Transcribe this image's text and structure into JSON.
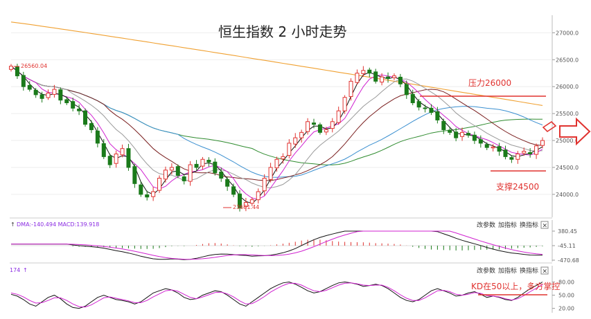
{
  "chart_data": {
    "type": "candlestick",
    "title": "恒生指数 2 小时走势",
    "main_panel": {
      "yticks": [
        "27000.0",
        "26500.0",
        "26000.0",
        "25500.0",
        "25000.0",
        "24500.0",
        "24000.0"
      ],
      "ytick_values": [
        27000,
        26500,
        26000,
        25500,
        25000,
        24500,
        24000
      ],
      "ylim": [
        23600,
        27300
      ],
      "high_label": "26560.04",
      "low_label": "23681.44",
      "resistance": {
        "label": "压力26000",
        "value": 26000
      },
      "support": {
        "label": "支撑24500",
        "value": 24500
      },
      "closes": [
        26380,
        26200,
        26000,
        25950,
        25850,
        25780,
        25880,
        25950,
        25750,
        25700,
        25600,
        25550,
        25300,
        25200,
        24950,
        24700,
        24550,
        24750,
        24850,
        24500,
        24200,
        24000,
        23950,
        24050,
        24300,
        24450,
        24500,
        24350,
        24250,
        24550,
        24500,
        24650,
        24600,
        24400,
        24300,
        24150,
        24000,
        23750,
        23850,
        23900,
        24050,
        24300,
        24500,
        24650,
        24700,
        24950,
        25050,
        25150,
        25350,
        25300,
        25150,
        25200,
        25350,
        25550,
        25800,
        26100,
        26250,
        26300,
        26250,
        26100,
        26180,
        26150,
        26200,
        26050,
        25850,
        25700,
        25620,
        25600,
        25520,
        25380,
        25200,
        25150,
        25050,
        25150,
        25100,
        25000,
        24950,
        24870,
        24880,
        24800,
        24700,
        24650,
        24750,
        24800,
        24750,
        24900,
        25000
      ]
    },
    "dma_panel": {
      "header": "DMA:-140.494  MACD:139.918",
      "yticks": [
        "380.45",
        "-45.11",
        "-470.68"
      ],
      "ylim": [
        -470.68,
        380.45
      ]
    },
    "kd_panel": {
      "header": "174",
      "note": "KD在50以上，多方掌控",
      "yticks": [
        "80.00",
        "50.00",
        "20.00"
      ],
      "ylim": [
        10,
        95
      ],
      "k": [
        52,
        48,
        40,
        30,
        25,
        35,
        45,
        50,
        42,
        30,
        22,
        20,
        25,
        35,
        45,
        50,
        45,
        40,
        38,
        35,
        30,
        35,
        45,
        55,
        60,
        65,
        62,
        55,
        45,
        40,
        42,
        50,
        55,
        60,
        58,
        50,
        40,
        30,
        25,
        35,
        45,
        55,
        65,
        72,
        78,
        80,
        75,
        68,
        60,
        55,
        58,
        65,
        72,
        78,
        80,
        78,
        75,
        70,
        72,
        75,
        72,
        65,
        55,
        45,
        38,
        35,
        40,
        50,
        60,
        65,
        60,
        55,
        48,
        50,
        55,
        58,
        52,
        45,
        48,
        45,
        40,
        38,
        45,
        55,
        65,
        72,
        80
      ],
      "d": [
        55,
        52,
        46,
        38,
        32,
        33,
        38,
        44,
        44,
        38,
        30,
        24,
        23,
        28,
        36,
        44,
        46,
        43,
        40,
        37,
        33,
        33,
        38,
        46,
        53,
        60,
        62,
        59,
        52,
        45,
        42,
        46,
        51,
        56,
        57,
        53,
        46,
        37,
        30,
        31,
        38,
        47,
        57,
        65,
        72,
        77,
        77,
        73,
        66,
        60,
        58,
        61,
        67,
        73,
        77,
        78,
        76,
        73,
        72,
        73,
        73,
        68,
        60,
        51,
        43,
        38,
        38,
        44,
        52,
        60,
        61,
        58,
        52,
        50,
        52,
        56,
        54,
        49,
        48,
        46,
        42,
        39,
        42,
        49,
        58,
        66,
        74
      ]
    },
    "controls": {
      "change_params": "改参数",
      "add_indicator": "加指标",
      "change_indicator": "换指标",
      "close": "×"
    },
    "colors": {
      "bull": "#e0322f",
      "bear": "#1a7a1a",
      "ma_yellow": "#f0a030",
      "ma_green": "#2e8b2e",
      "ma_blue": "#3a8fd0",
      "ma_brown": "#7a1f1f",
      "ma_pink": "#d020d0",
      "ma_gray": "#999999",
      "ma_black": "#111111"
    }
  }
}
